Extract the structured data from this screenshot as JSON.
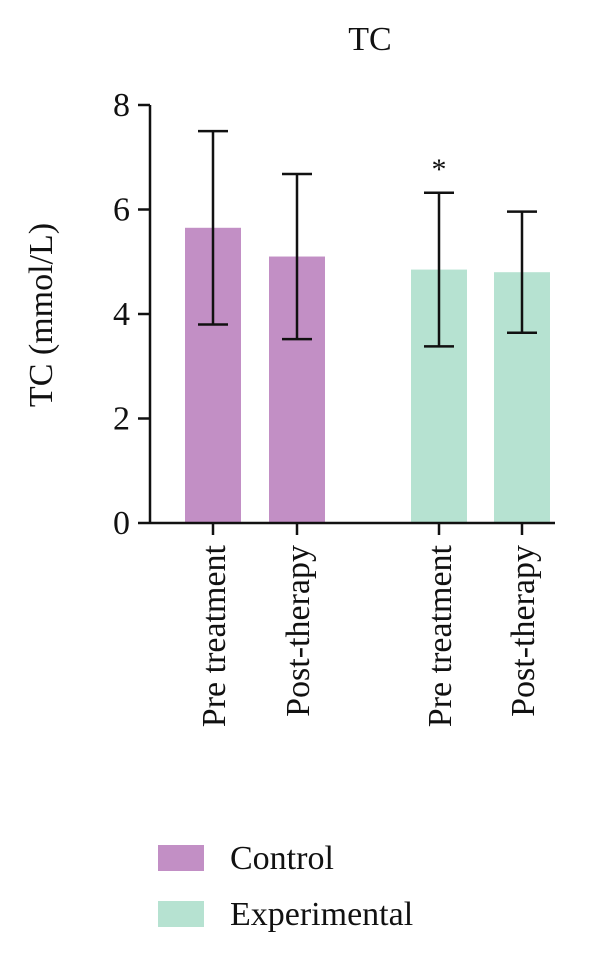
{
  "chart_data": {
    "type": "bar",
    "title": "TC",
    "ylabel": "TC (mmol/L)",
    "xlabel": "",
    "ylim": [
      0,
      8
    ],
    "yticks": [
      "0",
      "2",
      "4",
      "6",
      "8"
    ],
    "categories": [
      "Pre treatment",
      "Post-therapy",
      "Pre treatment",
      "Post-therapy"
    ],
    "groups": [
      "Control",
      "Control",
      "Experimental",
      "Experimental"
    ],
    "values": [
      5.65,
      5.1,
      4.85,
      4.8
    ],
    "errors": [
      1.85,
      1.58,
      1.47,
      1.16
    ],
    "annotations": [
      "",
      "",
      "*",
      ""
    ],
    "legend": {
      "position": "bottom-left",
      "entries": [
        {
          "label": "Control",
          "color": "#c28fc5"
        },
        {
          "label": "Experimental",
          "color": "#b6e2d1"
        }
      ]
    },
    "grid": false
  }
}
